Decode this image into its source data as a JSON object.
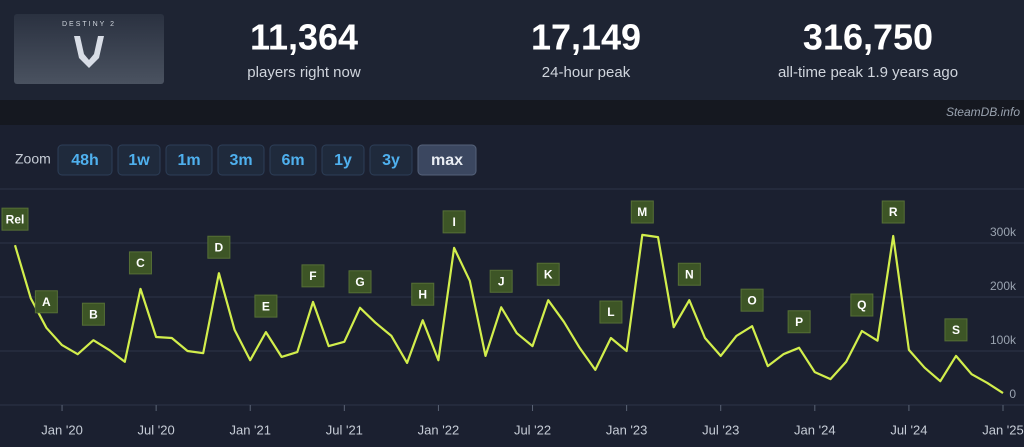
{
  "header": {
    "logo_text": "DESTINY 2",
    "stats": [
      {
        "value": "11,364",
        "label": "players right now"
      },
      {
        "value": "17,149",
        "label": "24-hour peak"
      },
      {
        "value": "316,750",
        "label": "all-time peak 1.9 years ago"
      }
    ],
    "watermark": "SteamDB.info"
  },
  "zoom": {
    "label": "Zoom",
    "buttons": [
      "48h",
      "1w",
      "1m",
      "3m",
      "6m",
      "1y",
      "3y",
      "max"
    ],
    "active": "max"
  },
  "chart_data": {
    "type": "line",
    "color": "#d2ee4c",
    "x": [
      "2019-10",
      "2019-11",
      "2019-12",
      "2020-01",
      "2020-02",
      "2020-03",
      "2020-04",
      "2020-05",
      "2020-06",
      "2020-07",
      "2020-08",
      "2020-09",
      "2020-10",
      "2020-11",
      "2020-12",
      "2021-01",
      "2021-02",
      "2021-03",
      "2021-04",
      "2021-05",
      "2021-06",
      "2021-07",
      "2021-08",
      "2021-09",
      "2021-10",
      "2021-11",
      "2021-12",
      "2022-01",
      "2022-02",
      "2022-03",
      "2022-04",
      "2022-05",
      "2022-06",
      "2022-07",
      "2022-08",
      "2022-09",
      "2022-10",
      "2022-11",
      "2022-12",
      "2023-01",
      "2023-02",
      "2023-03",
      "2023-04",
      "2023-05",
      "2023-06",
      "2023-07",
      "2023-08",
      "2023-09",
      "2023-10",
      "2023-11",
      "2023-12",
      "2024-01",
      "2024-02",
      "2024-03",
      "2024-04",
      "2024-05",
      "2024-06",
      "2024-07",
      "2024-08",
      "2024-09",
      "2024-10",
      "2024-11",
      "2024-12",
      "2025-01"
    ],
    "values": [
      296000,
      198000,
      143000,
      111000,
      94000,
      120000,
      102000,
      80000,
      215000,
      126000,
      124000,
      100000,
      96000,
      244000,
      139000,
      83000,
      135000,
      89000,
      98000,
      191000,
      109000,
      117000,
      180000,
      152000,
      128000,
      78000,
      157000,
      83000,
      291000,
      230000,
      91000,
      181000,
      133000,
      109000,
      194000,
      154000,
      106000,
      65000,
      124000,
      100000,
      315000,
      311000,
      144000,
      194000,
      124000,
      91000,
      128000,
      146000,
      72000,
      94000,
      106000,
      61000,
      48000,
      80000,
      137000,
      119000,
      313000,
      102000,
      69000,
      44000,
      91000,
      57000,
      41000,
      22000
    ],
    "xlim": [
      "2019-10",
      "2025-01"
    ],
    "xticks": [
      {
        "value": "2020-01",
        "label": "Jan '20"
      },
      {
        "value": "2020-07",
        "label": "Jul '20"
      },
      {
        "value": "2021-01",
        "label": "Jan '21"
      },
      {
        "value": "2021-07",
        "label": "Jul '21"
      },
      {
        "value": "2022-01",
        "label": "Jan '22"
      },
      {
        "value": "2022-07",
        "label": "Jul '22"
      },
      {
        "value": "2023-01",
        "label": "Jan '23"
      },
      {
        "value": "2023-07",
        "label": "Jul '23"
      },
      {
        "value": "2024-01",
        "label": "Jan '24"
      },
      {
        "value": "2024-07",
        "label": "Jul '24"
      },
      {
        "value": "2025-01",
        "label": "Jan '25"
      }
    ],
    "ylim": [
      0,
      400000
    ],
    "yticks": [
      0,
      {
        "value": 100000,
        "label": "100k"
      },
      {
        "value": 200000,
        "label": "200k"
      },
      {
        "value": 300000,
        "label": "300k"
      }
    ],
    "grid": true,
    "annotations": [
      {
        "label": "Rel",
        "x": "2019-10"
      },
      {
        "label": "A",
        "x": "2019-12"
      },
      {
        "label": "B",
        "x": "2020-03"
      },
      {
        "label": "C",
        "x": "2020-06"
      },
      {
        "label": "D",
        "x": "2020-11"
      },
      {
        "label": "E",
        "x": "2021-02"
      },
      {
        "label": "F",
        "x": "2021-05"
      },
      {
        "label": "G",
        "x": "2021-08"
      },
      {
        "label": "H",
        "x": "2021-12"
      },
      {
        "label": "I",
        "x": "2022-02"
      },
      {
        "label": "J",
        "x": "2022-05"
      },
      {
        "label": "K",
        "x": "2022-08"
      },
      {
        "label": "L",
        "x": "2022-12"
      },
      {
        "label": "M",
        "x": "2023-02"
      },
      {
        "label": "N",
        "x": "2023-05"
      },
      {
        "label": "O",
        "x": "2023-09"
      },
      {
        "label": "P",
        "x": "2023-12"
      },
      {
        "label": "Q",
        "x": "2024-04"
      },
      {
        "label": "R",
        "x": "2024-06"
      },
      {
        "label": "S",
        "x": "2024-10"
      }
    ]
  }
}
